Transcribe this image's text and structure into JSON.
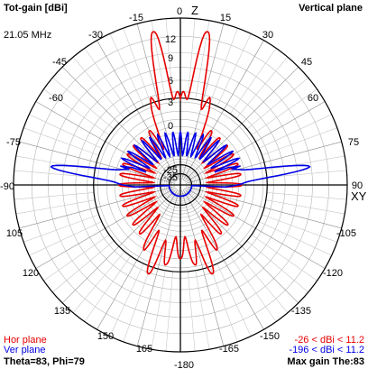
{
  "header": {
    "title": "Tot-gain [dBi]",
    "plane": "Vertical plane",
    "frequency": "21.05 MHz"
  },
  "chart_data": {
    "type": "polar",
    "rings": [
      "-35",
      "-25",
      "0",
      "3",
      "6",
      "9",
      "12"
    ],
    "angle_ticks": [
      "0",
      "15",
      "30",
      "45",
      "60",
      "75",
      "90",
      "105",
      "120",
      "135",
      "150",
      "165",
      "-180",
      "-165",
      "-150",
      "-135",
      "-120",
      "-105",
      "-90",
      "-75",
      "-60",
      "-45",
      "-30",
      "-15"
    ],
    "axis_labels": {
      "zenith": "Z",
      "horizon": "XY"
    },
    "grid": true,
    "series": [
      {
        "name": "Hor plane",
        "color": "#e60000",
        "range_label": "-26 < dBi < 11.2"
      },
      {
        "name": "Ver plane",
        "color": "#0000e6",
        "range_label": "-196 < dBi < 11.2"
      }
    ]
  },
  "footer": {
    "theta_phi": "Theta=83, Phi=79",
    "max_gain": "Max gain The:83"
  },
  "colors": {
    "grid": "#000000",
    "hor": "#e60000",
    "ver": "#0000e6"
  }
}
